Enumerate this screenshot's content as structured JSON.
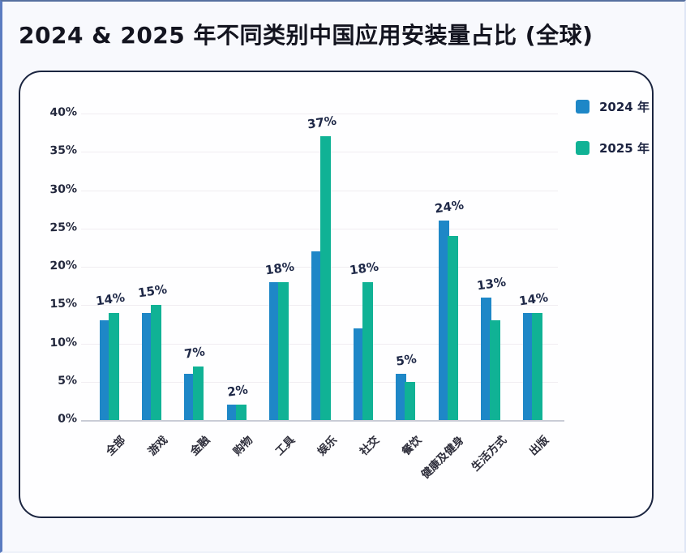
{
  "page": {
    "title": "2024 & 2025 年不同类别中国应用安装量占比 (全球)"
  },
  "legend": {
    "items": [
      {
        "label": "2024 年",
        "color": "#1e87c7"
      },
      {
        "label": "2025 年",
        "color": "#10b295"
      }
    ]
  },
  "chart_data": {
    "type": "bar",
    "title": "2024 & 2025 年不同类别中国应用安装量占比 (全球)",
    "categories": [
      "全部",
      "游戏",
      "金融",
      "购物",
      "工具",
      "娱乐",
      "社交",
      "餐饮",
      "健康及健身",
      "生活方式",
      "出版"
    ],
    "series": [
      {
        "name": "2024 年",
        "color": "#1e87c7",
        "values": [
          13,
          14,
          6,
          2,
          18,
          22,
          12,
          6,
          26,
          16,
          14
        ]
      },
      {
        "name": "2025 年",
        "color": "#10b295",
        "values": [
          14,
          15,
          7,
          2,
          18,
          37,
          18,
          5,
          24,
          13,
          14
        ]
      }
    ],
    "bar_labels": [
      "14%",
      "15%",
      "7%",
      "2%",
      "18%",
      "37%",
      "18%",
      "5%",
      "24%",
      "13%",
      "14%"
    ],
    "bar_labels_source": "2025 年",
    "y_ticks": [
      {
        "value": 0,
        "label": "0%"
      },
      {
        "value": 5,
        "label": "5%"
      },
      {
        "value": 10,
        "label": "10%"
      },
      {
        "value": 15,
        "label": "15%"
      },
      {
        "value": 20,
        "label": "20%"
      },
      {
        "value": 25,
        "label": "25%"
      },
      {
        "value": 30,
        "label": "30%"
      },
      {
        "value": 35,
        "label": "35%"
      },
      {
        "value": 40,
        "label": "40%"
      }
    ],
    "ylim": [
      0,
      40
    ],
    "xlabel": "",
    "ylabel": "",
    "grid": true,
    "legend_position": "top-right"
  }
}
